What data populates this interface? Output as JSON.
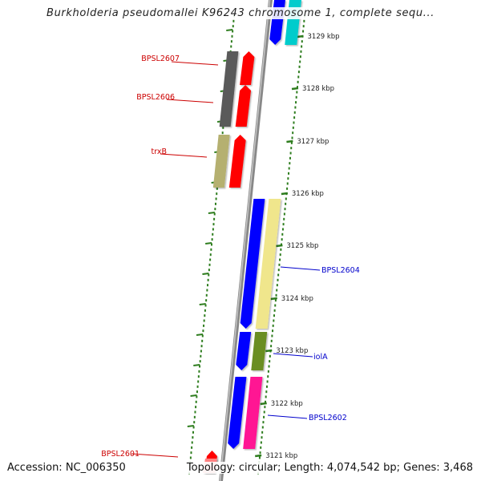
{
  "title": "Burkholderia pseudomallei K96243 chromosome 1, complete sequ...",
  "footer": {
    "accession": "Accession: NC_006350",
    "topology": "Topology: circular; Length: 4,074,542 bp; Genes: 3,468"
  },
  "colors": {
    "backbone": "#9a9a9a",
    "ticks": "#2e7d1e",
    "forward_label": "#cc0000",
    "reverse_label": "#0000cc",
    "tick_label": "#222222"
  },
  "scale_ticks": [
    {
      "label": "3129 kbp"
    },
    {
      "label": "3128 kbp"
    },
    {
      "label": "3127 kbp"
    },
    {
      "label": "3126 kbp"
    },
    {
      "label": "3125 kbp"
    },
    {
      "label": "3124 kbp"
    },
    {
      "label": "3123 kbp"
    },
    {
      "label": "3122 kbp"
    },
    {
      "label": "3121 kbp"
    }
  ],
  "forward_genes": [
    {
      "label": "BPSL2607",
      "color": "#5a5a5a",
      "cog_color": "#ff0000"
    },
    {
      "label": "BPSL2606",
      "color": "#5a5a5a",
      "cog_color": "#ff0000"
    },
    {
      "label": "trxB",
      "color": "#b5b070",
      "cog_color": "#ff0000"
    },
    {
      "label": "BPSL2601",
      "color": "#ff0000",
      "cog_color": "#ff8080"
    }
  ],
  "reverse_genes": [
    {
      "label": "",
      "color": "#0000ff",
      "cog_color": "#00cccc"
    },
    {
      "label": "BPSL2604",
      "color": "#0000ff",
      "cog_color": "#f0e68c"
    },
    {
      "label": "iolA",
      "color": "#0000ff",
      "cog_color": "#6b8e23"
    },
    {
      "label": "BPSL2602",
      "color": "#0000ff",
      "cog_color": "#ff1493"
    }
  ]
}
